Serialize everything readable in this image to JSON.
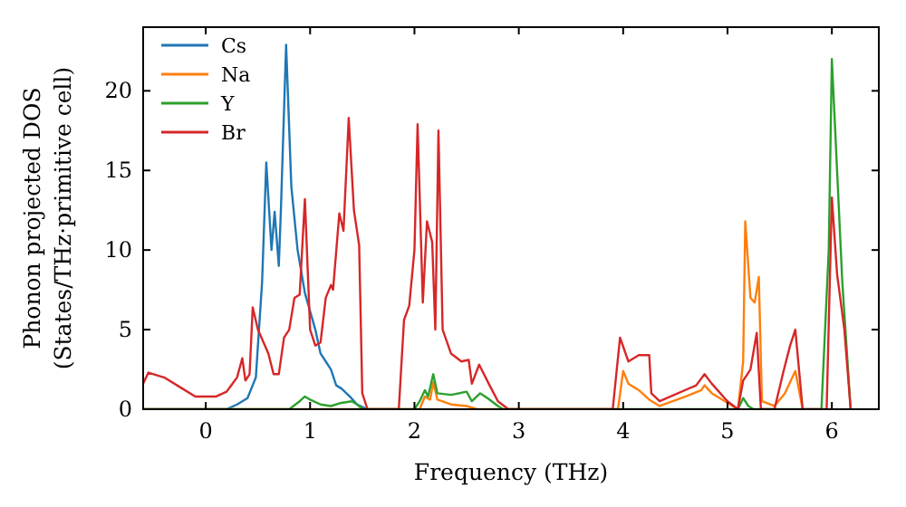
{
  "chart_data": {
    "type": "line",
    "xlabel": "Frequency (THz)",
    "ylabel": "Phonon projected DOS\n(States/THz·primitive cell)",
    "xlim": [
      -0.6,
      6.45
    ],
    "ylim": [
      0,
      24
    ],
    "xticks": [
      0,
      1,
      2,
      3,
      4,
      5,
      6
    ],
    "yticks": [
      0,
      5,
      10,
      15,
      20
    ],
    "legend": "top left",
    "grid": false,
    "marker": "none",
    "line_style": "solid",
    "series": [
      {
        "name": "Cs",
        "color": "#1f77b4",
        "x": [
          -0.6,
          0.2,
          0.3,
          0.4,
          0.48,
          0.54,
          0.58,
          0.63,
          0.66,
          0.7,
          0.72,
          0.77,
          0.82,
          0.88,
          0.95,
          1.05,
          1.1,
          1.15,
          1.2,
          1.25,
          1.3,
          1.38,
          1.45,
          1.55
        ],
        "values": [
          0,
          0,
          0.3,
          0.7,
          2.0,
          8.0,
          15.5,
          10.0,
          12.4,
          9.0,
          12.5,
          22.9,
          14.0,
          10.0,
          7.3,
          5.0,
          3.5,
          3.0,
          2.5,
          1.5,
          1.3,
          0.8,
          0.3,
          0
        ]
      },
      {
        "name": "Na",
        "color": "#ff7f0e",
        "x": [
          -0.6,
          2.05,
          2.1,
          2.15,
          2.18,
          2.22,
          2.35,
          2.5,
          2.6,
          3.95,
          4.0,
          4.05,
          4.15,
          4.25,
          4.35,
          4.6,
          4.75,
          4.78,
          4.85,
          5.0,
          5.1,
          5.15,
          5.17,
          5.22,
          5.26,
          5.3,
          5.33,
          5.45,
          5.55,
          5.65,
          5.72
        ],
        "values": [
          0,
          0,
          0.8,
          0.6,
          1.7,
          0.6,
          0.3,
          0.2,
          0,
          0,
          2.4,
          1.6,
          1.2,
          0.6,
          0.2,
          0.8,
          1.2,
          1.5,
          1.0,
          0.4,
          0,
          3.0,
          11.8,
          7.0,
          6.7,
          8.3,
          0.5,
          0.2,
          1.0,
          2.4,
          0
        ]
      },
      {
        "name": "Y",
        "color": "#2ca02c",
        "x": [
          -0.6,
          0.8,
          0.9,
          0.95,
          1.0,
          1.1,
          1.2,
          1.3,
          1.4,
          1.45,
          1.5,
          2.0,
          2.05,
          2.1,
          2.13,
          2.18,
          2.22,
          2.35,
          2.5,
          2.55,
          2.63,
          2.7,
          2.8,
          2.85,
          5.1,
          5.15,
          5.2,
          5.25,
          5.9,
          5.97,
          6.0,
          6.05,
          6.1,
          6.18
        ],
        "values": [
          0,
          0,
          0.5,
          0.8,
          0.6,
          0.3,
          0.2,
          0.4,
          0.5,
          0.3,
          0,
          0,
          0.5,
          1.2,
          0.8,
          2.2,
          1.0,
          0.9,
          1.1,
          0.5,
          1.0,
          0.7,
          0.2,
          0,
          0,
          0.7,
          0.2,
          0,
          0,
          10,
          22.0,
          15.0,
          8.0,
          0
        ]
      },
      {
        "name": "Br",
        "color": "#d62728",
        "x": [
          -0.6,
          -0.55,
          -0.4,
          -0.25,
          -0.1,
          0.1,
          0.2,
          0.3,
          0.35,
          0.38,
          0.42,
          0.45,
          0.5,
          0.6,
          0.65,
          0.7,
          0.75,
          0.8,
          0.85,
          0.9,
          0.95,
          1.0,
          1.05,
          1.1,
          1.15,
          1.2,
          1.22,
          1.28,
          1.32,
          1.37,
          1.42,
          1.47,
          1.5,
          1.55,
          1.85,
          1.9,
          1.95,
          2.0,
          2.03,
          2.08,
          2.12,
          2.17,
          2.2,
          2.23,
          2.27,
          2.35,
          2.45,
          2.52,
          2.55,
          2.62,
          2.72,
          2.8,
          2.9,
          3.9,
          3.97,
          4.05,
          4.15,
          4.25,
          4.27,
          4.35,
          4.7,
          4.78,
          4.85,
          5.0,
          5.1,
          5.15,
          5.22,
          5.28,
          5.32,
          5.45,
          5.53,
          5.6,
          5.65,
          5.72,
          5.95,
          6.0,
          6.05,
          6.12,
          6.18
        ],
        "values": [
          1.6,
          2.3,
          2.0,
          1.4,
          0.8,
          0.8,
          1.1,
          2.0,
          3.2,
          1.8,
          2.2,
          6.4,
          5.0,
          3.5,
          2.2,
          2.2,
          4.5,
          5.0,
          7.0,
          7.2,
          13.2,
          5.0,
          4.0,
          4.2,
          7.0,
          7.8,
          7.5,
          12.3,
          11.2,
          18.3,
          12.5,
          10.3,
          1.0,
          0,
          0,
          5.6,
          6.5,
          10.0,
          17.9,
          6.7,
          11.8,
          10.5,
          5.0,
          17.5,
          5.0,
          3.5,
          3.0,
          3.1,
          1.6,
          2.8,
          1.5,
          0.5,
          0,
          0,
          4.5,
          3.0,
          3.4,
          3.4,
          1.0,
          0.5,
          1.5,
          2.2,
          1.6,
          0.5,
          0,
          1.8,
          2.5,
          4.8,
          0,
          0,
          2.2,
          4.0,
          5.0,
          0,
          0,
          13.3,
          8.5,
          5.0,
          0
        ]
      }
    ]
  }
}
